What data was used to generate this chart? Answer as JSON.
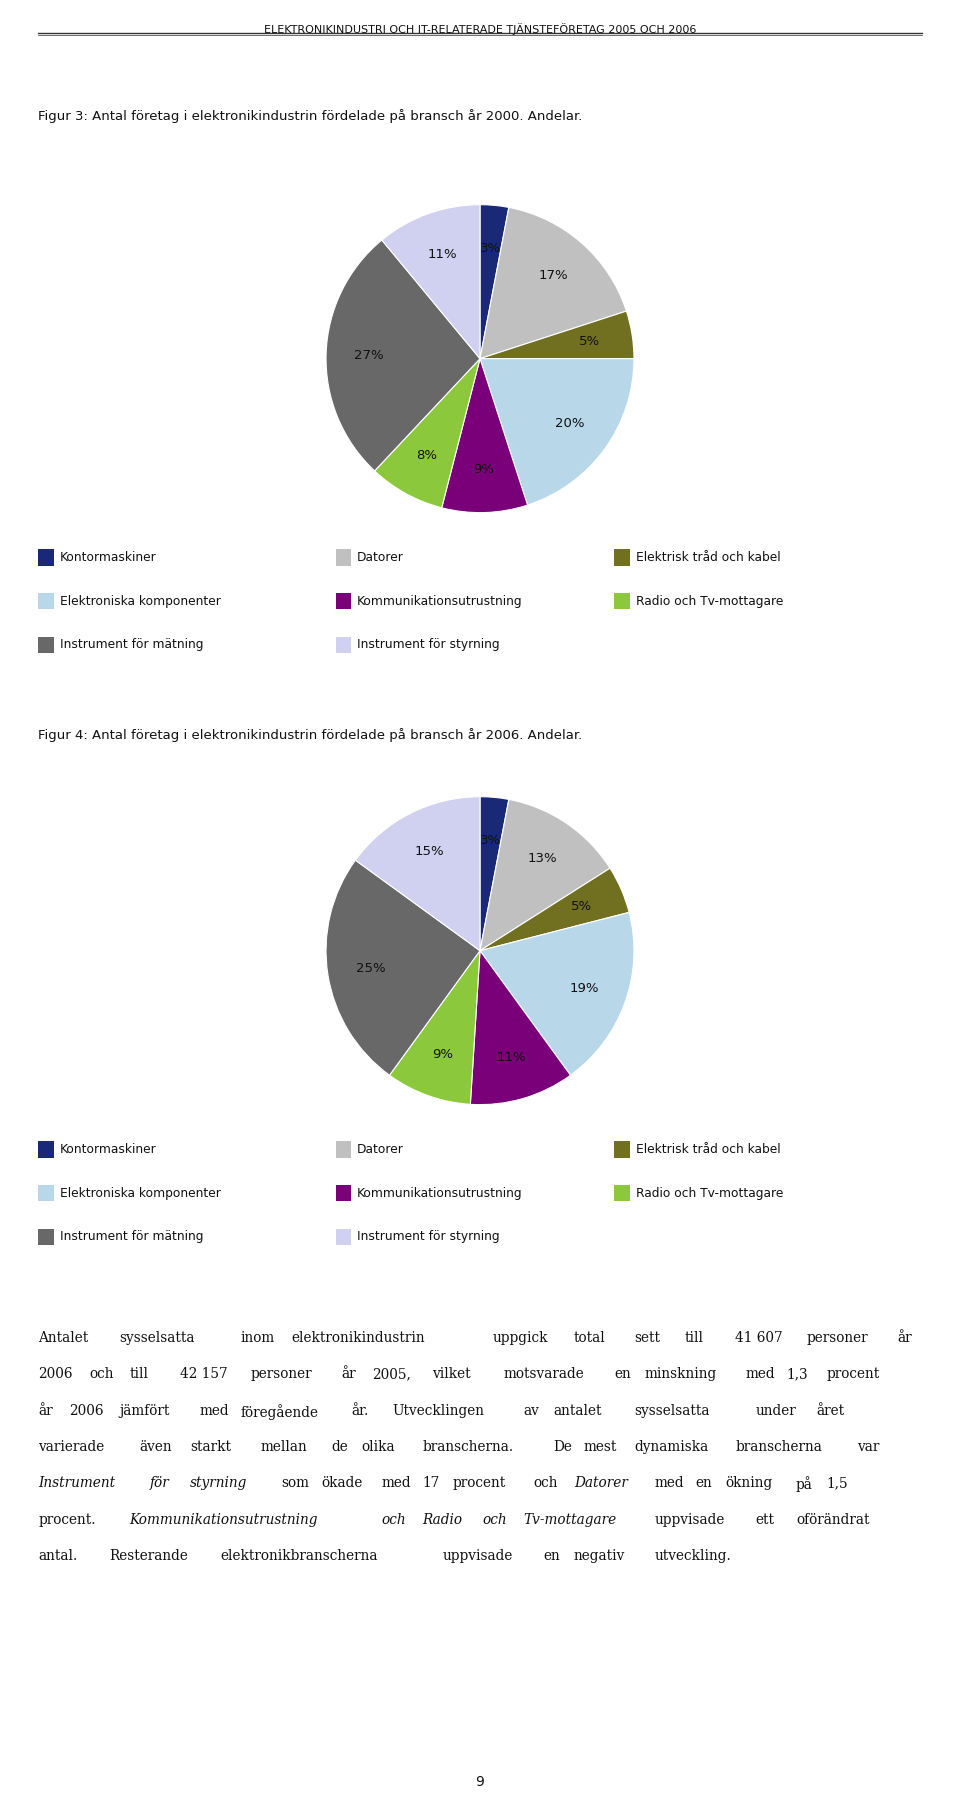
{
  "page_title": "ELEKTRONIKINDUSTRI OCH IT-RELATERADE TJÄNSTEFÖRETAG 2005 OCH 2006",
  "fig3_title": "Figur 3: Antal företag i elektronikindustrin fördelade på bransch år 2000. Andelar.",
  "fig4_title": "Figur 4: Antal företag i elektronikindustrin fördelade på bransch år 2006. Andelar.",
  "legend_labels": [
    "Kontormaskiner",
    "Datorer",
    "Elektrisk tråd och kabel",
    "Elektroniska komponenter",
    "Kommunikationsutrustning",
    "Radio och Tv-mottagare",
    "Instrument för mätning",
    "Instrument för styrning"
  ],
  "colors": [
    "#1a2878",
    "#c0c0c0",
    "#707020",
    "#b8d8ea",
    "#7a007a",
    "#8cc83c",
    "#686868",
    "#d0d0f0"
  ],
  "pie1_values": [
    3,
    17,
    5,
    20,
    9,
    8,
    27,
    11
  ],
  "pie1_labels": [
    "3%",
    "17%",
    "5%",
    "20%",
    "9%",
    "8%",
    "27%",
    "11%"
  ],
  "pie2_values": [
    3,
    13,
    5,
    19,
    11,
    9,
    25,
    15
  ],
  "pie2_labels": [
    "3%",
    "13%",
    "5%",
    "19%",
    "11%",
    "9%",
    "25%",
    "15%"
  ],
  "body_seg1": "Antalet sysselsatta inom elektronikindustrin uppgick total sett till 41 607 personer år 2006 och till 42 157 personer år 2005, vilket motsvarade en minskning med 1,3 procent år 2006 jämfört med föregående år. Utvecklingen av antalet sysselsatta under året varierade även starkt mellan de olika branscherna. De mest dynamiska branscherna var ",
  "body_italic1": "Instrument för styrning",
  "body_seg2": " som ökade med 17 procent och ",
  "body_italic2": "Datorer",
  "body_seg3": " med en ökning på 1,5 procent. ",
  "body_italic3": "Kommunikationsutrustning och Radio och Tv-mottagare",
  "body_seg4": " uppvisade ett oförändrat antal. Resterande elektronikbranscherna uppvisade en negativ utveckling.",
  "page_number": "9",
  "background_color": "#ffffff"
}
